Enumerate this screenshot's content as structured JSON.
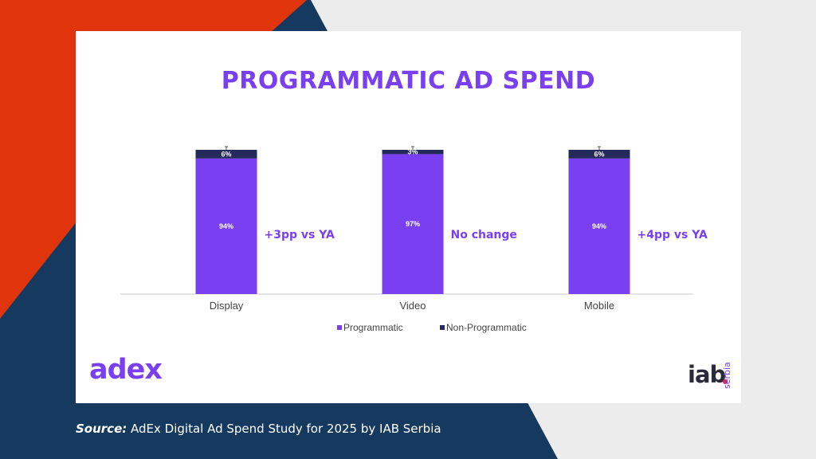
{
  "colors": {
    "accent": "#7b3ff2",
    "programmatic": "#7b3ff2",
    "non_programmatic": "#252a5c",
    "bg_red": "#e0340c",
    "bg_navy": "#163a5f"
  },
  "logos": {
    "adex": "adex",
    "iab": "iab",
    "iab_sub": "serbia"
  },
  "source": {
    "label": "Source:",
    "text": "AdEx Digital Ad Spend Study for 2025 by IAB Serbia"
  },
  "chart_data": {
    "type": "bar",
    "stacked": true,
    "title": "PROGRAMMATIC AD SPEND",
    "categories": [
      "Display",
      "Video",
      "Mobile"
    ],
    "series": [
      {
        "name": "Programmatic",
        "values": [
          94,
          97,
          94
        ],
        "labels": [
          "94%",
          "97%",
          "94%"
        ]
      },
      {
        "name": "Non-Programmatic",
        "values": [
          6,
          3,
          6
        ],
        "labels": [
          "6%",
          "3%",
          "6%"
        ]
      }
    ],
    "annotations": [
      "+3pp vs YA",
      "No change",
      "+4pp vs YA"
    ],
    "ylim": [
      0,
      100
    ],
    "grid": false,
    "legend_position": "bottom"
  }
}
